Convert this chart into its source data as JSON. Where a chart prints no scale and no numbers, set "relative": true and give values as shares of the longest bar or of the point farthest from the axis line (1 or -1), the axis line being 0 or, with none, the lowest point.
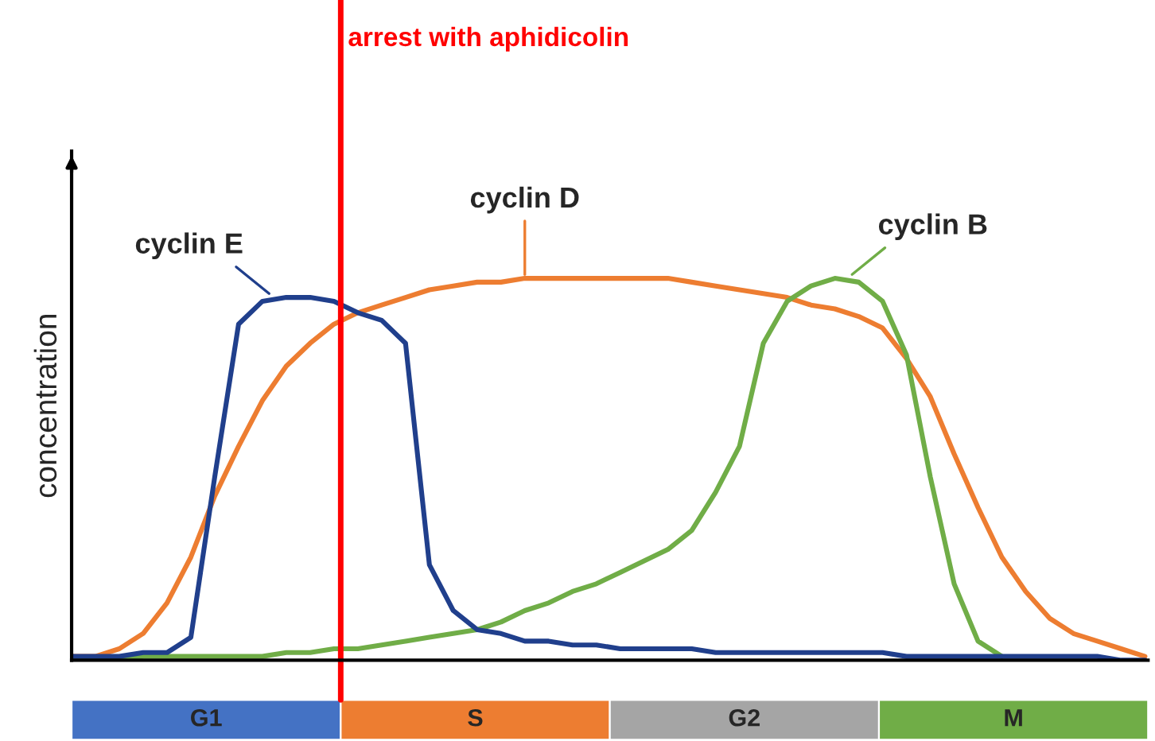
{
  "chart_data": {
    "type": "line",
    "relative": true,
    "ylabel": "concentration",
    "legend": false,
    "grid": false,
    "marker": "none",
    "line_style": "solid",
    "categories": [
      null,
      null,
      null,
      null,
      null,
      null,
      null,
      null,
      null,
      null,
      null,
      null,
      null,
      null,
      null,
      null,
      null,
      null,
      null,
      null,
      null,
      null,
      null,
      null,
      null,
      null,
      null,
      null,
      null,
      null,
      null,
      null,
      null,
      null,
      null,
      null,
      null,
      null,
      null,
      null,
      null,
      null,
      null,
      null,
      null,
      null
    ],
    "series": [
      {
        "name": "cyclin D",
        "color": "#ed7d31",
        "values": [
          0.01,
          0.01,
          0.03,
          0.07,
          0.15,
          0.27,
          0.43,
          0.56,
          0.68,
          0.77,
          0.83,
          0.88,
          0.91,
          0.93,
          0.95,
          0.97,
          0.98,
          0.99,
          0.99,
          1.0,
          1.0,
          1.0,
          1.0,
          1.0,
          1.0,
          1.0,
          0.99,
          0.98,
          0.97,
          0.96,
          0.95,
          0.93,
          0.92,
          0.9,
          0.87,
          0.79,
          0.69,
          0.54,
          0.4,
          0.27,
          0.18,
          0.11,
          0.07,
          0.05,
          0.03,
          0.01
        ]
      },
      {
        "name": "cyclin B",
        "color": "#70ad47",
        "values": [
          0.0,
          0.0,
          0.0,
          0.01,
          0.01,
          0.01,
          0.01,
          0.01,
          0.01,
          0.02,
          0.02,
          0.03,
          0.03,
          0.04,
          0.05,
          0.06,
          0.07,
          0.08,
          0.1,
          0.13,
          0.15,
          0.18,
          0.2,
          0.23,
          0.26,
          0.29,
          0.34,
          0.44,
          0.56,
          0.83,
          0.94,
          0.98,
          1.0,
          0.99,
          0.94,
          0.8,
          0.48,
          0.2,
          0.05,
          0.01,
          null,
          null,
          null,
          null,
          null,
          null
        ]
      },
      {
        "name": "cyclin E",
        "color": "#203f8c",
        "values": [
          0.01,
          0.01,
          0.01,
          0.02,
          0.02,
          0.06,
          0.48,
          0.88,
          0.94,
          0.95,
          0.95,
          0.94,
          0.91,
          0.89,
          0.83,
          0.25,
          0.13,
          0.08,
          0.07,
          0.05,
          0.05,
          0.04,
          0.04,
          0.03,
          0.03,
          0.03,
          0.03,
          0.02,
          0.02,
          0.02,
          0.02,
          0.02,
          0.02,
          0.02,
          0.02,
          0.01,
          0.01,
          0.01,
          0.01,
          0.01,
          0.01,
          0.01,
          0.01,
          0.01,
          0.0,
          0.0
        ]
      }
    ],
    "annotations": [
      "arrest with aphidicolin",
      "G1",
      "S",
      "G2",
      "M"
    ]
  }
}
